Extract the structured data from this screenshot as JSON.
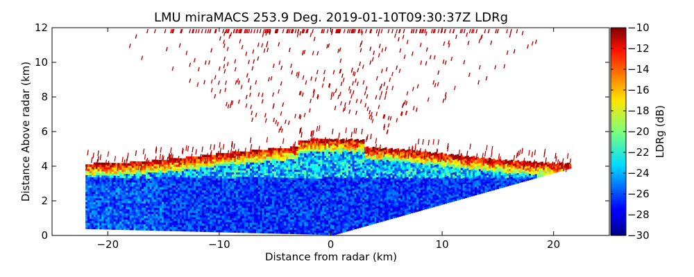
{
  "chart_data": {
    "type": "heatmap",
    "title": "LMU miraMACS 253.9 Deg. 2019-01-10T09:30:37Z  LDRg",
    "xlabel": "Distance from radar (km)",
    "ylabel": "Distance Above radar  (km)",
    "xlim": [
      -25,
      25
    ],
    "ylim": [
      0,
      12
    ],
    "xticks": [
      -20,
      -10,
      0,
      10,
      20
    ],
    "yticks": [
      0,
      2,
      4,
      6,
      8,
      10,
      12
    ],
    "colorbar": {
      "label": "LDRg (dB)",
      "range": [
        -30,
        -10
      ],
      "ticks": [
        -10,
        -12,
        -14,
        -16,
        -18,
        -20,
        -22,
        -24,
        -26,
        -28,
        -30
      ],
      "colormap": "jet"
    },
    "scan": {
      "azimuth_deg": 253.9,
      "radar_position_km": [
        0,
        0
      ],
      "max_range_x_km": 22,
      "sector_left_bottom_km": [
        -22,
        0.4
      ],
      "sector_right_top_km": [
        21.5,
        3.9
      ]
    },
    "layers": [
      {
        "name": "near-surface low LDR",
        "height_km": [
          0,
          3.5
        ],
        "ldr_db": [
          -30,
          -24
        ]
      },
      {
        "name": "melting layer / bright band",
        "height_km": [
          3.8,
          5.2
        ],
        "ldr_db": [
          -22,
          -12
        ]
      },
      {
        "name": "sparse high-LDR returns aloft",
        "height_km": [
          5.2,
          11.8
        ],
        "ldr_db": [
          -12,
          -10
        ]
      }
    ]
  }
}
